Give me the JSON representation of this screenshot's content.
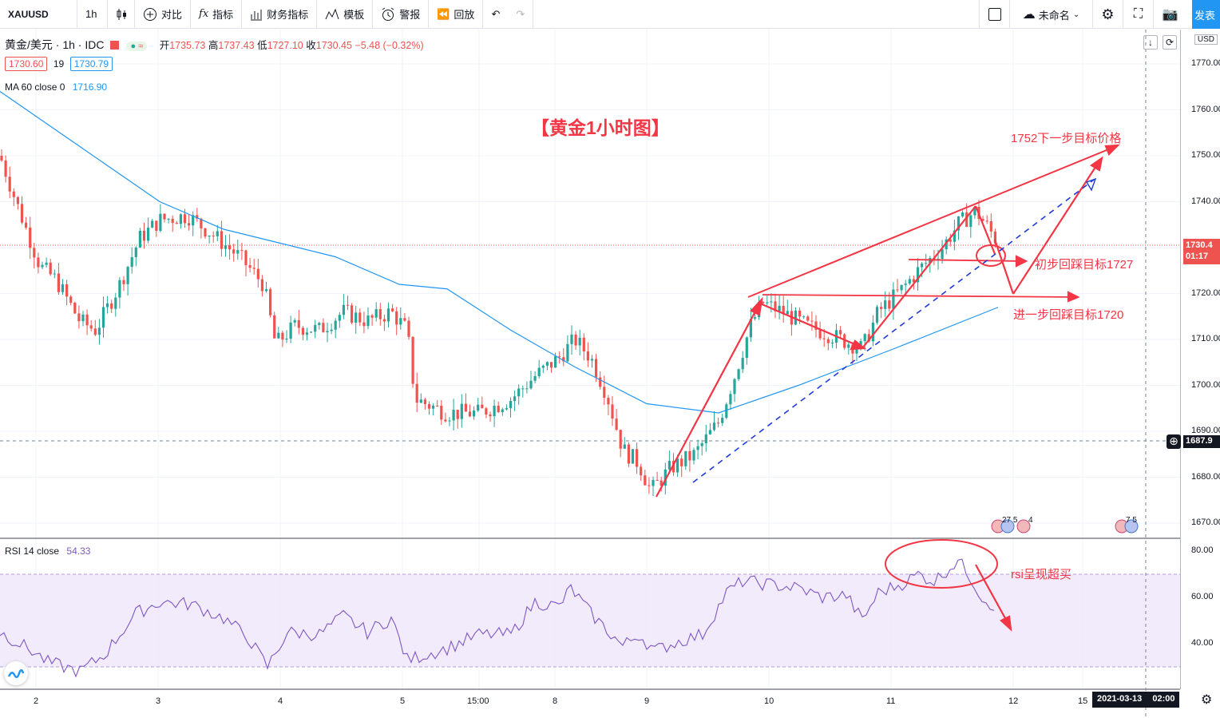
{
  "toolbar": {
    "symbol": "XAUUSD",
    "interval": "1h",
    "compare": "对比",
    "indicators": "指标",
    "financials": "财务指标",
    "templates": "模板",
    "alert": "警报",
    "replay": "回放",
    "layout_name": "未命名",
    "publish": "发表"
  },
  "legend": {
    "symbol_desc": "黄金/美元 · 1h · IDC",
    "open_label": "开",
    "open": "1735.73",
    "high_label": "高",
    "high": "1737.43",
    "low_label": "低",
    "low": "1727.10",
    "close_label": "收",
    "close": "1730.45",
    "change": "−5.48 (−0.32%)",
    "bid": "1730.60",
    "spread": "19",
    "ask": "1730.79",
    "ma_label": "MA 60 close 0",
    "ma_value": "1716.90"
  },
  "rsi": {
    "label": "RSI 14 close",
    "value": "54.33"
  },
  "price_axis": {
    "currency": "USD",
    "ticks": [
      "1770.00",
      "1760.00",
      "1750.00",
      "1740.00",
      "1730.00",
      "1720.00",
      "1710.00",
      "1700.00",
      "1690.00",
      "1680.00",
      "1670.00"
    ],
    "current_price": "1730.4",
    "countdown": "01:17",
    "crosshair_price": "1687.9"
  },
  "rsi_axis": {
    "ticks": [
      "80.00",
      "60.00",
      "40.00"
    ]
  },
  "time_axis": {
    "ticks": [
      "2",
      "3",
      "4",
      "5",
      "15:00",
      "8",
      "9",
      "10",
      "11",
      "12",
      "15"
    ],
    "crosshair_date": "2021-03-13",
    "crosshair_time": "02:00"
  },
  "annotations": {
    "title": "【黄金1小时图】",
    "target_1752": "1752下一步目标价格",
    "target_1727": "初步回踩目标1727",
    "target_1720": "进一步回踩目标1720",
    "rsi_note": "rsi呈现超买"
  },
  "events": {
    "e1": "27 5",
    "e1b": "4",
    "e2": "7 5"
  },
  "colors": {
    "up": "#26a69a",
    "down": "#ef5350",
    "ma": "#2196f3",
    "rsi": "#7e57c2",
    "annot": "#f23645"
  },
  "chart_data": {
    "type": "line",
    "series": [
      {
        "name": "MA 60 close 0",
        "values": [
          1764,
          1752,
          1740,
          1734,
          1731,
          1728,
          1722,
          1721,
          1712,
          1704,
          1696,
          1694,
          1700,
          1708,
          1717
        ]
      }
    ],
    "ylim": [
      1665,
      1775
    ]
  }
}
